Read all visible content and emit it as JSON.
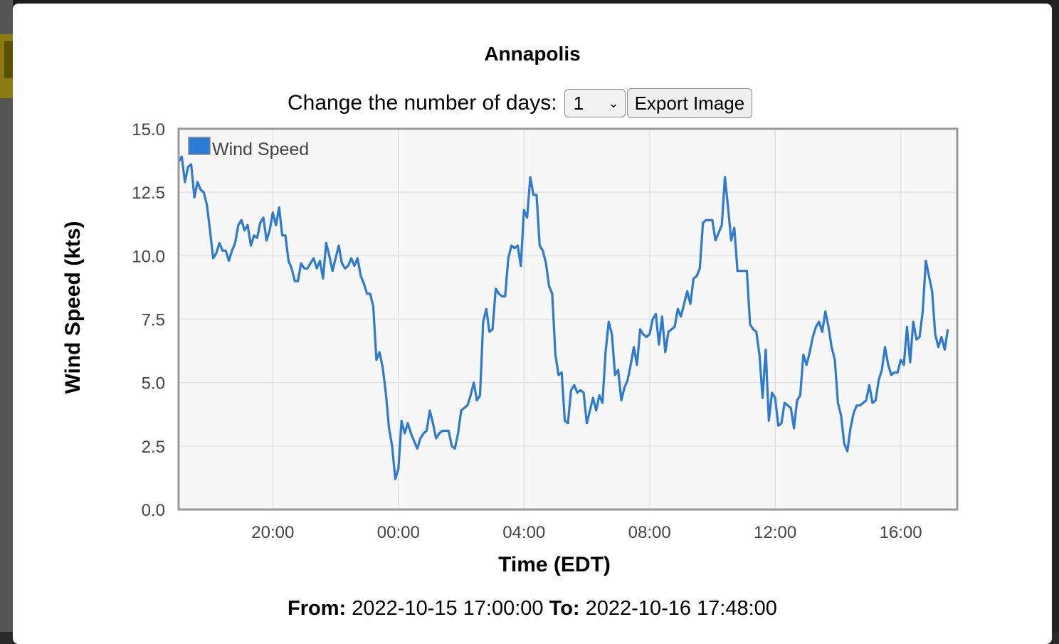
{
  "title": "Annapolis",
  "controls": {
    "days_label": "Change the number of days:",
    "days_value": "1",
    "export_label": "Export Image"
  },
  "footer": {
    "from_label": "From:",
    "from_value": "2022-10-15 17:00:00",
    "to_label": "To:",
    "to_value": "2022-10-16 17:48:00"
  },
  "chart_data": {
    "type": "line",
    "xlabel": "Time (EDT)",
    "ylabel": "Wind Speed (kts)",
    "ylim": [
      0,
      15
    ],
    "yticks": [
      "0.0",
      "2.5",
      "5.0",
      "7.5",
      "10.0",
      "12.5",
      "15.0"
    ],
    "xlim": [
      "2022-10-15 17:00",
      "2022-10-16 17:48"
    ],
    "xticks": [
      "20:00",
      "00:00",
      "04:00",
      "08:00",
      "12:00",
      "16:00"
    ],
    "grid": true,
    "legend": "top-left",
    "series": [
      {
        "name": "Wind Speed",
        "color": "#2b7bd6",
        "points": [
          [
            "2022-10-15 17:00",
            13.7
          ],
          [
            "2022-10-15 17:06",
            13.9
          ],
          [
            "2022-10-15 17:12",
            12.9
          ],
          [
            "2022-10-15 17:18",
            13.5
          ],
          [
            "2022-10-15 17:24",
            13.6
          ],
          [
            "2022-10-15 17:30",
            12.3
          ],
          [
            "2022-10-15 17:36",
            12.9
          ],
          [
            "2022-10-15 17:42",
            12.6
          ],
          [
            "2022-10-15 17:48",
            12.5
          ],
          [
            "2022-10-15 17:54",
            12.0
          ],
          [
            "2022-10-15 18:00",
            11.0
          ],
          [
            "2022-10-15 18:06",
            9.9
          ],
          [
            "2022-10-15 18:12",
            10.1
          ],
          [
            "2022-10-15 18:18",
            10.5
          ],
          [
            "2022-10-15 18:24",
            10.2
          ],
          [
            "2022-10-15 18:30",
            10.2
          ],
          [
            "2022-10-15 18:36",
            9.8
          ],
          [
            "2022-10-15 18:42",
            10.2
          ],
          [
            "2022-10-15 18:48",
            10.5
          ],
          [
            "2022-10-15 18:54",
            11.2
          ],
          [
            "2022-10-15 19:00",
            11.4
          ],
          [
            "2022-10-15 19:06",
            11.0
          ],
          [
            "2022-10-15 19:12",
            11.2
          ],
          [
            "2022-10-15 19:18",
            10.4
          ],
          [
            "2022-10-15 19:24",
            10.8
          ],
          [
            "2022-10-15 19:30",
            10.7
          ],
          [
            "2022-10-15 19:36",
            11.3
          ],
          [
            "2022-10-15 19:42",
            11.5
          ],
          [
            "2022-10-15 19:48",
            10.6
          ],
          [
            "2022-10-15 19:54",
            11.0
          ],
          [
            "2022-10-15 20:00",
            11.7
          ],
          [
            "2022-10-15 20:06",
            11.2
          ],
          [
            "2022-10-15 20:12",
            11.9
          ],
          [
            "2022-10-15 20:18",
            10.8
          ],
          [
            "2022-10-15 20:24",
            10.8
          ],
          [
            "2022-10-15 20:30",
            9.8
          ],
          [
            "2022-10-15 20:36",
            9.5
          ],
          [
            "2022-10-15 20:42",
            9.0
          ],
          [
            "2022-10-15 20:48",
            9.0
          ],
          [
            "2022-10-15 20:54",
            9.7
          ],
          [
            "2022-10-15 21:00",
            9.5
          ],
          [
            "2022-10-15 21:06",
            9.5
          ],
          [
            "2022-10-15 21:12",
            9.7
          ],
          [
            "2022-10-15 21:18",
            9.9
          ],
          [
            "2022-10-15 21:24",
            9.5
          ],
          [
            "2022-10-15 21:30",
            9.8
          ],
          [
            "2022-10-15 21:36",
            9.1
          ],
          [
            "2022-10-15 21:42",
            10.5
          ],
          [
            "2022-10-15 21:48",
            10.0
          ],
          [
            "2022-10-15 21:54",
            9.4
          ],
          [
            "2022-10-15 22:00",
            9.9
          ],
          [
            "2022-10-15 22:06",
            10.4
          ],
          [
            "2022-10-15 22:12",
            9.7
          ],
          [
            "2022-10-15 22:18",
            9.5
          ],
          [
            "2022-10-15 22:24",
            9.6
          ],
          [
            "2022-10-15 22:30",
            9.9
          ],
          [
            "2022-10-15 22:36",
            9.6
          ],
          [
            "2022-10-15 22:42",
            9.9
          ],
          [
            "2022-10-15 22:48",
            9.2
          ],
          [
            "2022-10-15 22:54",
            8.9
          ],
          [
            "2022-10-15 23:00",
            8.5
          ],
          [
            "2022-10-15 23:06",
            8.5
          ],
          [
            "2022-10-15 23:12",
            8.0
          ],
          [
            "2022-10-15 23:18",
            5.9
          ],
          [
            "2022-10-15 23:24",
            6.2
          ],
          [
            "2022-10-15 23:30",
            5.6
          ],
          [
            "2022-10-15 23:36",
            4.6
          ],
          [
            "2022-10-15 23:42",
            3.2
          ],
          [
            "2022-10-15 23:48",
            2.5
          ],
          [
            "2022-10-15 23:54",
            1.2
          ],
          [
            "2022-10-16 00:00",
            1.6
          ],
          [
            "2022-10-16 00:06",
            3.5
          ],
          [
            "2022-10-16 00:12",
            3.0
          ],
          [
            "2022-10-16 00:18",
            3.4
          ],
          [
            "2022-10-16 00:24",
            3.0
          ],
          [
            "2022-10-16 00:30",
            2.7
          ],
          [
            "2022-10-16 00:36",
            2.4
          ],
          [
            "2022-10-16 00:42",
            2.8
          ],
          [
            "2022-10-16 00:48",
            3.0
          ],
          [
            "2022-10-16 00:54",
            3.1
          ],
          [
            "2022-10-16 01:00",
            3.9
          ],
          [
            "2022-10-16 01:06",
            3.4
          ],
          [
            "2022-10-16 01:12",
            2.8
          ],
          [
            "2022-10-16 01:18",
            3.0
          ],
          [
            "2022-10-16 01:24",
            3.1
          ],
          [
            "2022-10-16 01:30",
            3.1
          ],
          [
            "2022-10-16 01:36",
            3.1
          ],
          [
            "2022-10-16 01:42",
            2.5
          ],
          [
            "2022-10-16 01:48",
            2.4
          ],
          [
            "2022-10-16 01:54",
            3.0
          ],
          [
            "2022-10-16 02:00",
            3.9
          ],
          [
            "2022-10-16 02:06",
            4.0
          ],
          [
            "2022-10-16 02:12",
            4.1
          ],
          [
            "2022-10-16 02:18",
            4.5
          ],
          [
            "2022-10-16 02:24",
            5.0
          ],
          [
            "2022-10-16 02:30",
            4.3
          ],
          [
            "2022-10-16 02:36",
            4.5
          ],
          [
            "2022-10-16 02:42",
            7.4
          ],
          [
            "2022-10-16 02:48",
            7.9
          ],
          [
            "2022-10-16 02:54",
            7.0
          ],
          [
            "2022-10-16 03:00",
            7.1
          ],
          [
            "2022-10-16 03:06",
            8.7
          ],
          [
            "2022-10-16 03:12",
            8.5
          ],
          [
            "2022-10-16 03:18",
            8.4
          ],
          [
            "2022-10-16 03:24",
            8.4
          ],
          [
            "2022-10-16 03:30",
            9.9
          ],
          [
            "2022-10-16 03:36",
            10.4
          ],
          [
            "2022-10-16 03:42",
            10.3
          ],
          [
            "2022-10-16 03:48",
            10.4
          ],
          [
            "2022-10-16 03:54",
            9.6
          ],
          [
            "2022-10-16 04:00",
            11.8
          ],
          [
            "2022-10-16 04:06",
            11.5
          ],
          [
            "2022-10-16 04:12",
            13.1
          ],
          [
            "2022-10-16 04:18",
            12.4
          ],
          [
            "2022-10-16 04:24",
            12.4
          ],
          [
            "2022-10-16 04:30",
            10.4
          ],
          [
            "2022-10-16 04:36",
            10.2
          ],
          [
            "2022-10-16 04:42",
            9.7
          ],
          [
            "2022-10-16 04:48",
            8.8
          ],
          [
            "2022-10-16 04:54",
            8.5
          ],
          [
            "2022-10-16 05:00",
            6.1
          ],
          [
            "2022-10-16 05:06",
            5.3
          ],
          [
            "2022-10-16 05:12",
            5.4
          ],
          [
            "2022-10-16 05:18",
            3.5
          ],
          [
            "2022-10-16 05:24",
            3.4
          ],
          [
            "2022-10-16 05:30",
            4.7
          ],
          [
            "2022-10-16 05:36",
            4.9
          ],
          [
            "2022-10-16 05:42",
            4.6
          ],
          [
            "2022-10-16 05:48",
            4.7
          ],
          [
            "2022-10-16 05:54",
            4.6
          ],
          [
            "2022-10-16 06:00",
            3.4
          ],
          [
            "2022-10-16 06:06",
            3.9
          ],
          [
            "2022-10-16 06:12",
            4.4
          ],
          [
            "2022-10-16 06:18",
            3.9
          ],
          [
            "2022-10-16 06:24",
            4.5
          ],
          [
            "2022-10-16 06:30",
            4.2
          ],
          [
            "2022-10-16 06:36",
            6.2
          ],
          [
            "2022-10-16 06:42",
            7.4
          ],
          [
            "2022-10-16 06:48",
            6.9
          ],
          [
            "2022-10-16 06:54",
            5.3
          ],
          [
            "2022-10-16 07:00",
            5.5
          ],
          [
            "2022-10-16 07:06",
            4.3
          ],
          [
            "2022-10-16 07:12",
            4.8
          ],
          [
            "2022-10-16 07:18",
            5.1
          ],
          [
            "2022-10-16 07:24",
            5.7
          ],
          [
            "2022-10-16 07:30",
            6.4
          ],
          [
            "2022-10-16 07:36",
            5.7
          ],
          [
            "2022-10-16 07:42",
            7.1
          ],
          [
            "2022-10-16 07:48",
            6.9
          ],
          [
            "2022-10-16 07:54",
            6.8
          ],
          [
            "2022-10-16 08:00",
            6.9
          ],
          [
            "2022-10-16 08:06",
            7.5
          ],
          [
            "2022-10-16 08:12",
            7.7
          ],
          [
            "2022-10-16 08:18",
            6.5
          ],
          [
            "2022-10-16 08:24",
            7.6
          ],
          [
            "2022-10-16 08:30",
            6.2
          ],
          [
            "2022-10-16 08:36",
            7.0
          ],
          [
            "2022-10-16 08:42",
            7.1
          ],
          [
            "2022-10-16 08:48",
            7.2
          ],
          [
            "2022-10-16 08:54",
            7.9
          ],
          [
            "2022-10-16 09:00",
            7.6
          ],
          [
            "2022-10-16 09:06",
            8.1
          ],
          [
            "2022-10-16 09:12",
            8.6
          ],
          [
            "2022-10-16 09:18",
            8.1
          ],
          [
            "2022-10-16 09:24",
            9.1
          ],
          [
            "2022-10-16 09:30",
            9.2
          ],
          [
            "2022-10-16 09:36",
            9.5
          ],
          [
            "2022-10-16 09:42",
            11.3
          ],
          [
            "2022-10-16 09:48",
            11.4
          ],
          [
            "2022-10-16 09:54",
            11.4
          ],
          [
            "2022-10-16 10:00",
            11.4
          ],
          [
            "2022-10-16 10:06",
            10.6
          ],
          [
            "2022-10-16 10:12",
            10.9
          ],
          [
            "2022-10-16 10:18",
            11.2
          ],
          [
            "2022-10-16 10:24",
            13.1
          ],
          [
            "2022-10-16 10:30",
            11.9
          ],
          [
            "2022-10-16 10:36",
            10.6
          ],
          [
            "2022-10-16 10:42",
            11.1
          ],
          [
            "2022-10-16 10:48",
            9.4
          ],
          [
            "2022-10-16 10:54",
            9.4
          ],
          [
            "2022-10-16 11:00",
            9.4
          ],
          [
            "2022-10-16 11:06",
            9.4
          ],
          [
            "2022-10-16 11:12",
            7.3
          ],
          [
            "2022-10-16 11:18",
            7.1
          ],
          [
            "2022-10-16 11:24",
            7.0
          ],
          [
            "2022-10-16 11:30",
            6.1
          ],
          [
            "2022-10-16 11:36",
            4.4
          ],
          [
            "2022-10-16 11:42",
            6.3
          ],
          [
            "2022-10-16 11:48",
            3.5
          ],
          [
            "2022-10-16 11:54",
            4.6
          ],
          [
            "2022-10-16 12:00",
            4.4
          ],
          [
            "2022-10-16 12:06",
            3.3
          ],
          [
            "2022-10-16 12:12",
            3.4
          ],
          [
            "2022-10-16 12:18",
            4.2
          ],
          [
            "2022-10-16 12:24",
            4.1
          ],
          [
            "2022-10-16 12:30",
            4.0
          ],
          [
            "2022-10-16 12:36",
            3.2
          ],
          [
            "2022-10-16 12:42",
            4.3
          ],
          [
            "2022-10-16 12:48",
            4.5
          ],
          [
            "2022-10-16 12:54",
            6.1
          ],
          [
            "2022-10-16 13:00",
            5.7
          ],
          [
            "2022-10-16 13:06",
            6.2
          ],
          [
            "2022-10-16 13:12",
            6.8
          ],
          [
            "2022-10-16 13:18",
            7.2
          ],
          [
            "2022-10-16 13:24",
            7.4
          ],
          [
            "2022-10-16 13:30",
            7.0
          ],
          [
            "2022-10-16 13:36",
            7.8
          ],
          [
            "2022-10-16 13:42",
            7.2
          ],
          [
            "2022-10-16 13:48",
            6.4
          ],
          [
            "2022-10-16 13:54",
            5.9
          ],
          [
            "2022-10-16 14:00",
            4.2
          ],
          [
            "2022-10-16 14:06",
            3.7
          ],
          [
            "2022-10-16 14:12",
            2.6
          ],
          [
            "2022-10-16 14:18",
            2.3
          ],
          [
            "2022-10-16 14:24",
            3.2
          ],
          [
            "2022-10-16 14:30",
            3.8
          ],
          [
            "2022-10-16 14:36",
            4.1
          ],
          [
            "2022-10-16 14:42",
            4.1
          ],
          [
            "2022-10-16 14:48",
            4.2
          ],
          [
            "2022-10-16 14:54",
            4.3
          ],
          [
            "2022-10-16 15:00",
            4.9
          ],
          [
            "2022-10-16 15:06",
            4.2
          ],
          [
            "2022-10-16 15:12",
            4.3
          ],
          [
            "2022-10-16 15:18",
            5.1
          ],
          [
            "2022-10-16 15:24",
            5.5
          ],
          [
            "2022-10-16 15:30",
            6.4
          ],
          [
            "2022-10-16 15:36",
            5.7
          ],
          [
            "2022-10-16 15:42",
            5.3
          ],
          [
            "2022-10-16 15:48",
            5.4
          ],
          [
            "2022-10-16 15:54",
            5.4
          ],
          [
            "2022-10-16 16:00",
            5.9
          ],
          [
            "2022-10-16 16:06",
            5.7
          ],
          [
            "2022-10-16 16:12",
            7.2
          ],
          [
            "2022-10-16 16:18",
            5.8
          ],
          [
            "2022-10-16 16:24",
            7.4
          ],
          [
            "2022-10-16 16:30",
            6.7
          ],
          [
            "2022-10-16 16:36",
            6.8
          ],
          [
            "2022-10-16 16:42",
            7.8
          ],
          [
            "2022-10-16 16:48",
            9.8
          ],
          [
            "2022-10-16 16:54",
            9.2
          ],
          [
            "2022-10-16 17:00",
            8.6
          ],
          [
            "2022-10-16 17:06",
            6.9
          ],
          [
            "2022-10-16 17:12",
            6.4
          ],
          [
            "2022-10-16 17:18",
            6.8
          ],
          [
            "2022-10-16 17:24",
            6.3
          ],
          [
            "2022-10-16 17:30",
            7.1
          ]
        ]
      }
    ]
  }
}
